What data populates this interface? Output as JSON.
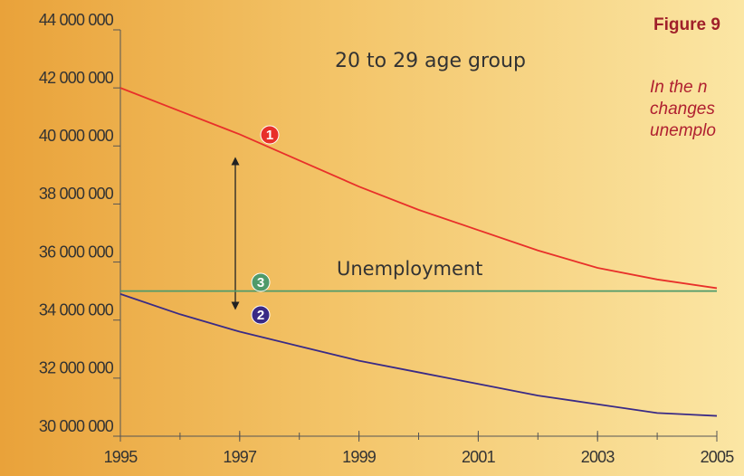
{
  "chart_data": {
    "type": "line",
    "title": "20 to 29 age group",
    "annotations": [
      "Unemployment"
    ],
    "side_text": {
      "heading": "Figure 9",
      "lines": [
        "In the n",
        "changes",
        "unemplo"
      ]
    },
    "x": [
      1995,
      1996,
      1997,
      1998,
      1999,
      2000,
      2001,
      2002,
      2003,
      2004,
      2005
    ],
    "xlim": [
      1995,
      2005
    ],
    "xticks": [
      1995,
      1997,
      1999,
      2001,
      2003,
      2005
    ],
    "ylim": [
      30000000,
      44000000
    ],
    "yticks": [
      {
        "value": 30000000,
        "label": "30 000 000"
      },
      {
        "value": 32000000,
        "label": "32 000 000"
      },
      {
        "value": 34000000,
        "label": "34 000 000"
      },
      {
        "value": 36000000,
        "label": "36 000 000"
      },
      {
        "value": 38000000,
        "label": "38 000 000"
      },
      {
        "value": 40000000,
        "label": "40 000 000"
      },
      {
        "value": 42000000,
        "label": "42 000 000"
      },
      {
        "value": 44000000,
        "label": "44 000 000"
      }
    ],
    "series": [
      {
        "name": "1",
        "color": "#e8302a",
        "values": [
          42000000,
          41200000,
          40400000,
          39500000,
          38600000,
          37800000,
          37100000,
          36400000,
          35800000,
          35400000,
          35100000
        ]
      },
      {
        "name": "2",
        "color": "#3a2a86",
        "values": [
          34900000,
          34200000,
          33600000,
          33100000,
          32600000,
          32200000,
          31800000,
          31400000,
          31100000,
          30800000,
          30700000
        ]
      },
      {
        "name": "3",
        "color": "#4f9a6a",
        "values": [
          35000000,
          35000000,
          35000000,
          35000000,
          35000000,
          35000000,
          35000000,
          35000000,
          35000000,
          35000000,
          35000000
        ]
      }
    ]
  }
}
